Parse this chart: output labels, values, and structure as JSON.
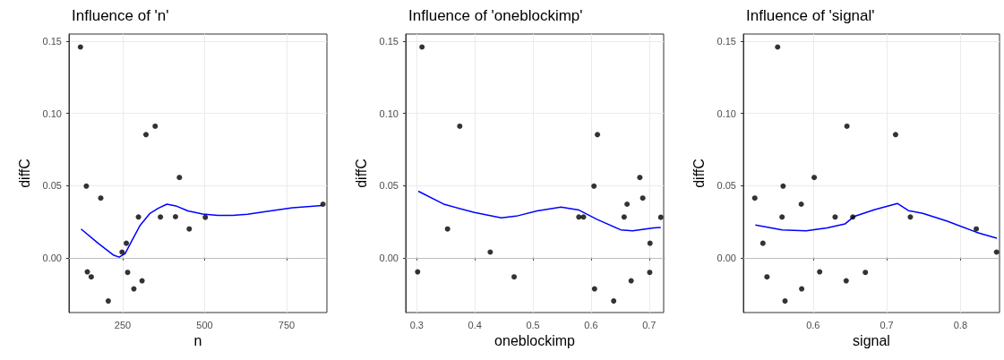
{
  "chart_data": [
    {
      "type": "scatter",
      "title": "Influence of 'n'",
      "xlabel": "n",
      "ylabel": "diffC",
      "grid": true,
      "marker": "circle",
      "xlim": [
        86,
        873
      ],
      "xticks": [
        250,
        500,
        750
      ],
      "ylim": [
        -0.038,
        0.155
      ],
      "yticks": [
        {
          "value": 0,
          "label": "0.00"
        },
        {
          "value": 0.05,
          "label": "0.05"
        },
        {
          "value": 0.1,
          "label": "0.10"
        },
        {
          "value": 0.15,
          "label": "0.15"
        }
      ],
      "ref_lines": [
        {
          "axis": "y",
          "value": 0,
          "color": "#bebebe"
        }
      ],
      "series": [
        {
          "type": "scatter",
          "color": "#000000",
          "x": [
            121,
            139,
            142,
            154,
            183,
            206,
            248,
            261,
            265,
            284,
            298,
            309,
            321,
            349,
            365,
            411,
            423,
            453,
            502,
            861
          ],
          "values": [
            0.146,
            0.0496,
            -0.0098,
            -0.0133,
            0.0413,
            -0.03,
            0.0039,
            0.01,
            -0.0102,
            -0.0216,
            0.0282,
            -0.016,
            0.0853,
            0.0911,
            0.0282,
            0.0284,
            0.0556,
            0.0199,
            0.028,
            0.0371
          ]
        },
        {
          "type": "line",
          "color": "#0000ff",
          "marker": "none",
          "x": [
            123,
            175,
            221,
            239,
            257,
            276,
            303,
            333,
            358,
            385,
            412,
            449,
            494,
            540,
            586,
            631,
            677,
            768,
            859
          ],
          "values": [
            0.0199,
            0.01,
            0.0019,
            0.0004,
            0.0027,
            0.011,
            0.0224,
            0.0307,
            0.0342,
            0.0371,
            0.0359,
            0.0324,
            0.0303,
            0.0293,
            0.0293,
            0.0301,
            0.0317,
            0.0346,
            0.0361
          ]
        }
      ]
    },
    {
      "type": "scatter",
      "title": "Influence of 'oneblockimp'",
      "xlabel": "oneblockimp",
      "ylabel": "diffC",
      "grid": true,
      "marker": "circle",
      "xlim": [
        0.281,
        0.725
      ],
      "xticks": [
        0.3,
        0.4,
        0.5,
        0.6,
        0.7
      ],
      "ylim": [
        -0.038,
        0.155
      ],
      "yticks": [
        {
          "value": 0,
          "label": "0.00"
        },
        {
          "value": 0.05,
          "label": "0.05"
        },
        {
          "value": 0.1,
          "label": "0.10"
        },
        {
          "value": 0.15,
          "label": "0.15"
        }
      ],
      "ref_lines": [
        {
          "axis": "y",
          "value": 0,
          "color": "#bebebe"
        }
      ],
      "series": [
        {
          "type": "scatter",
          "color": "#000000",
          "x": [
            0.309,
            0.3015,
            0.353,
            0.374,
            0.4265,
            0.4676,
            0.579,
            0.587,
            0.605,
            0.606,
            0.611,
            0.639,
            0.657,
            0.662,
            0.669,
            0.684,
            0.689,
            0.7015,
            0.701,
            0.72
          ],
          "values": [
            0.146,
            -0.0098,
            0.0199,
            0.0911,
            0.0039,
            -0.0133,
            0.0282,
            0.0282,
            0.0496,
            -0.0216,
            0.0853,
            -0.03,
            0.0282,
            0.0371,
            -0.016,
            0.0556,
            0.0413,
            0.01,
            -0.0102,
            0.028
          ]
        },
        {
          "type": "line",
          "color": "#0000ff",
          "marker": "none",
          "x": [
            0.3026,
            0.3478,
            0.3992,
            0.4455,
            0.4712,
            0.5072,
            0.5483,
            0.5792,
            0.61,
            0.6512,
            0.6717,
            0.7077,
            0.72
          ],
          "values": [
            0.0461,
            0.0369,
            0.0313,
            0.0276,
            0.0288,
            0.0324,
            0.0351,
            0.033,
            0.0266,
            0.0193,
            0.0187,
            0.0207,
            0.021
          ]
        }
      ]
    },
    {
      "type": "scatter",
      "title": "Influence of 'signal'",
      "xlabel": "signal",
      "ylabel": "diffC",
      "grid": true,
      "marker": "circle",
      "xlim": [
        0.5055,
        0.853
      ],
      "xticks": [
        0.6,
        0.7,
        0.8
      ],
      "ylim": [
        -0.038,
        0.155
      ],
      "yticks": [
        {
          "value": 0,
          "label": "0.00"
        },
        {
          "value": 0.05,
          "label": "0.05"
        },
        {
          "value": 0.1,
          "label": "0.10"
        },
        {
          "value": 0.15,
          "label": "0.15"
        }
      ],
      "ref_lines": [
        {
          "axis": "y",
          "value": 0,
          "color": "#bebebe"
        }
      ],
      "series": [
        {
          "type": "scatter",
          "color": "#000000",
          "x": [
            0.521,
            0.532,
            0.5375,
            0.552,
            0.5594,
            0.558,
            0.562,
            0.584,
            0.5846,
            0.6016,
            0.609,
            0.63,
            0.645,
            0.646,
            0.654,
            0.671,
            0.712,
            0.732,
            0.8215,
            0.849
          ],
          "values": [
            0.0413,
            0.01,
            -0.0133,
            0.146,
            0.0496,
            0.0282,
            -0.03,
            0.0371,
            -0.0216,
            0.0556,
            -0.0098,
            0.0282,
            -0.016,
            0.0911,
            0.0282,
            -0.0102,
            0.0853,
            0.0282,
            0.0199,
            0.0039
          ]
        },
        {
          "type": "line",
          "color": "#0000ff",
          "marker": "none",
          "x": [
            0.5217,
            0.5582,
            0.5907,
            0.6191,
            0.6434,
            0.6556,
            0.684,
            0.7144,
            0.7294,
            0.7489,
            0.7813,
            0.8219,
            0.8495
          ],
          "values": [
            0.0226,
            0.0193,
            0.0187,
            0.0207,
            0.0234,
            0.0286,
            0.0334,
            0.0376,
            0.0326,
            0.0307,
            0.0255,
            0.0176,
            0.0135
          ]
        }
      ]
    }
  ]
}
